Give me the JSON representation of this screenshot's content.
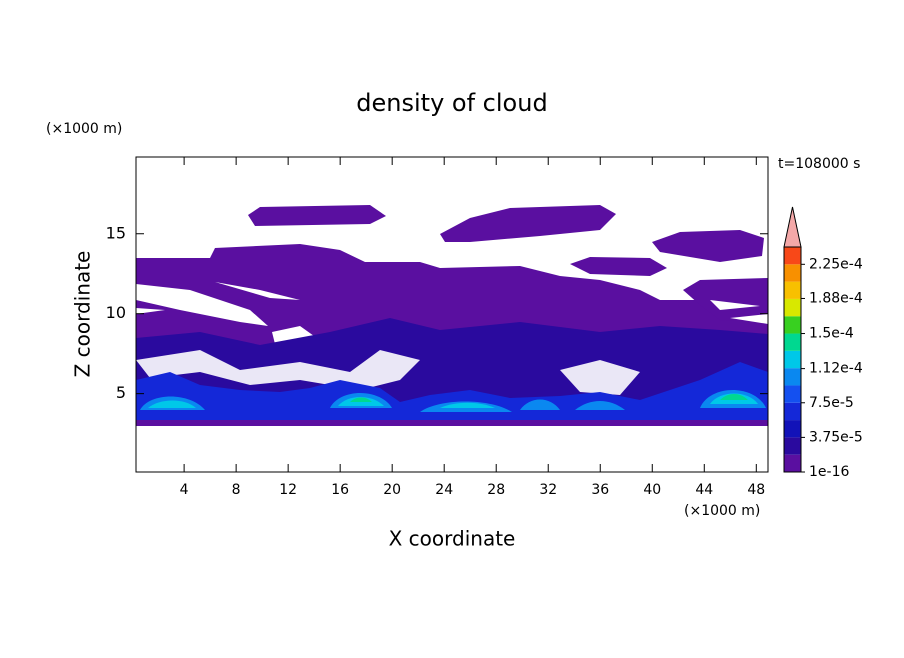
{
  "chart_data": {
    "type": "contour",
    "title": "density of cloud",
    "x_label": "X coordinate",
    "y_label": "Z coordinate",
    "x_unit": "(×1000 m)",
    "y_unit": "(×1000 m)",
    "annotation": "t=108000 s",
    "xlim": [
      0.3,
      48.9
    ],
    "xticks": [
      4,
      8,
      12,
      16,
      20,
      24,
      28,
      32,
      36,
      40,
      44,
      48
    ],
    "ylim": [
      0.1,
      19.8
    ],
    "yticks": [
      5,
      10,
      15
    ],
    "colorbar": {
      "levels": [
        1e-16,
        1.875e-05,
        3.75e-05,
        5.625e-05,
        7.5e-05,
        9.375e-05,
        0.0001125,
        0.00013125,
        0.00015,
        0.00016875,
        0.0001875,
        0.00020625,
        0.000225,
        0.00024375
      ],
      "colors": [
        "#5a0fa0",
        "#2a0a9e",
        "#1212b8",
        "#1428d8",
        "#1450f0",
        "#0a88f0",
        "#00c8e8",
        "#00d890",
        "#38d020",
        "#d8e800",
        "#f8c000",
        "#f89000",
        "#f84818"
      ],
      "ticks": [
        1e-16,
        {
          "value": 3.75e-05,
          "label": "3.75e-5"
        },
        {
          "value": 7.5e-05,
          "label": "7.5e-5"
        },
        {
          "value": 0.000112,
          "label": "1.12e-4"
        },
        {
          "value": 0.00015,
          "label": "1.5e-4"
        },
        {
          "value": 0.000188,
          "label": "1.88e-4"
        },
        {
          "value": 0.000225,
          "label": "2.25e-4"
        }
      ],
      "extend": "max",
      "extend_color": "#f4a8a8"
    }
  }
}
